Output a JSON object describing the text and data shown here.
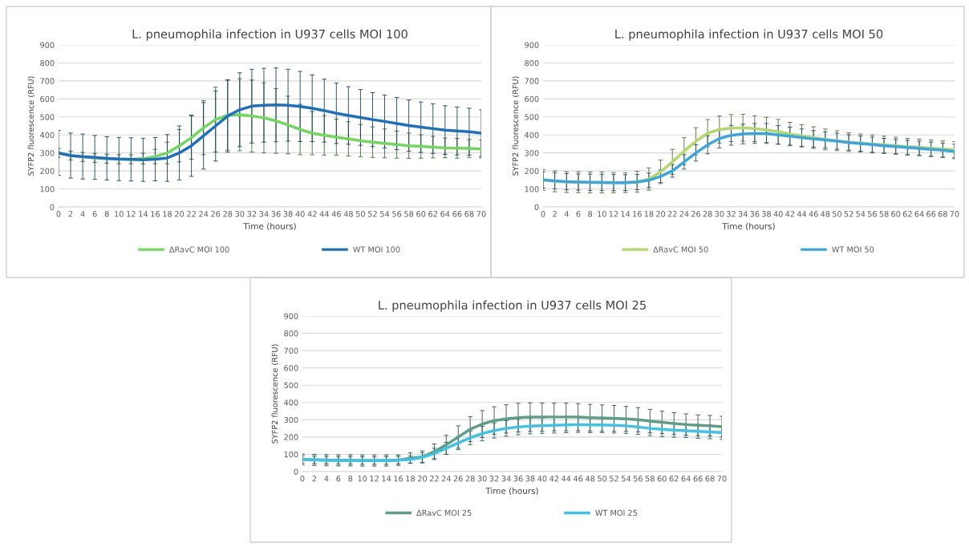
{
  "chart_data": [
    {
      "type": "line",
      "title": "L. pneumophila infection in U937 cells MOI 100",
      "xlabel": "Time (hours)",
      "ylabel": "SYFP2 fluorescence (RFU)",
      "x": [
        0,
        2,
        4,
        6,
        8,
        10,
        12,
        14,
        16,
        18,
        20,
        22,
        24,
        26,
        28,
        30,
        32,
        34,
        36,
        38,
        40,
        42,
        44,
        46,
        48,
        50,
        52,
        54,
        56,
        58,
        60,
        62,
        64,
        66,
        68,
        70
      ],
      "series": [
        {
          "name": "ΔRavC MOI 100",
          "color": "#70d85a",
          "values": [
            300,
            285,
            278,
            272,
            268,
            265,
            265,
            268,
            280,
            300,
            340,
            385,
            440,
            485,
            510,
            512,
            505,
            495,
            478,
            455,
            430,
            410,
            398,
            388,
            378,
            368,
            360,
            353,
            346,
            340,
            336,
            332,
            328,
            326,
            325,
            322
          ],
          "errors": [
            25,
            25,
            25,
            25,
            25,
            25,
            25,
            30,
            40,
            60,
            90,
            120,
            150,
            180,
            195,
            200,
            200,
            195,
            180,
            160,
            140,
            120,
            110,
            100,
            95,
            90,
            85,
            80,
            75,
            70,
            65,
            60,
            55,
            55,
            50,
            50
          ]
        },
        {
          "name": "WT MOI 100",
          "color": "#1c6fc1",
          "values": [
            300,
            285,
            280,
            275,
            270,
            266,
            264,
            262,
            265,
            272,
            300,
            340,
            395,
            450,
            505,
            540,
            560,
            565,
            567,
            565,
            558,
            548,
            535,
            520,
            508,
            497,
            485,
            475,
            463,
            452,
            443,
            435,
            427,
            422,
            418,
            410
          ],
          "errors": [
            125,
            125,
            125,
            122,
            120,
            120,
            120,
            120,
            120,
            130,
            150,
            170,
            185,
            195,
            200,
            205,
            205,
            205,
            205,
            200,
            195,
            185,
            175,
            168,
            160,
            155,
            150,
            147,
            145,
            142,
            140,
            138,
            135,
            133,
            130,
            130
          ]
        }
      ],
      "xlim": [
        0,
        70
      ],
      "xticks": [
        0,
        2,
        4,
        6,
        8,
        10,
        12,
        14,
        16,
        18,
        20,
        22,
        24,
        26,
        28,
        30,
        32,
        34,
        36,
        38,
        40,
        42,
        44,
        46,
        48,
        50,
        52,
        54,
        56,
        58,
        60,
        62,
        64,
        66,
        68,
        70
      ],
      "ylim": [
        0,
        900
      ],
      "yticks": [
        0,
        100,
        200,
        300,
        400,
        500,
        600,
        700,
        800,
        900
      ],
      "grid": "y",
      "legend": "bottom"
    },
    {
      "type": "line",
      "title": "L. pneumophila infection in U937 cells MOI 50",
      "xlabel": "Time (hours)",
      "ylabel": "SYFP2 fluorescence (RFU)",
      "x": [
        0,
        2,
        4,
        6,
        8,
        10,
        12,
        14,
        16,
        18,
        20,
        22,
        24,
        26,
        28,
        30,
        32,
        34,
        36,
        38,
        40,
        42,
        44,
        46,
        48,
        50,
        52,
        54,
        56,
        58,
        60,
        62,
        64,
        66,
        68,
        70
      ],
      "series": [
        {
          "name": "ΔRavC MOI 50",
          "color": "#b2d86a",
          "values": [
            150,
            142,
            138,
            137,
            136,
            136,
            135,
            135,
            140,
            155,
            195,
            250,
            310,
            365,
            410,
            430,
            438,
            440,
            435,
            428,
            418,
            405,
            395,
            385,
            375,
            368,
            360,
            355,
            350,
            345,
            340,
            335,
            332,
            327,
            322,
            318
          ],
          "errors": [
            58,
            58,
            58,
            58,
            58,
            58,
            56,
            55,
            58,
            62,
            65,
            70,
            75,
            75,
            75,
            75,
            75,
            75,
            72,
            70,
            68,
            65,
            62,
            60,
            58,
            55,
            52,
            50,
            50,
            48,
            47,
            46,
            45,
            45,
            45,
            45
          ]
        },
        {
          "name": "WT MOI 50",
          "color": "#3aa6e0",
          "values": [
            150,
            145,
            140,
            138,
            137,
            136,
            135,
            135,
            138,
            148,
            170,
            200,
            250,
            300,
            345,
            380,
            398,
            405,
            408,
            408,
            400,
            393,
            385,
            378,
            372,
            365,
            358,
            352,
            346,
            340,
            335,
            330,
            325,
            320,
            315,
            308
          ],
          "errors": [
            45,
            45,
            45,
            45,
            45,
            45,
            45,
            44,
            42,
            40,
            35,
            35,
            40,
            45,
            50,
            52,
            55,
            55,
            55,
            55,
            52,
            50,
            48,
            46,
            45,
            44,
            43,
            42,
            42,
            41,
            40,
            40,
            40,
            40,
            40,
            40
          ]
        }
      ],
      "xlim": [
        0,
        70
      ],
      "xticks": [
        0,
        2,
        4,
        6,
        8,
        10,
        12,
        14,
        16,
        18,
        20,
        22,
        24,
        26,
        28,
        30,
        32,
        34,
        36,
        38,
        40,
        42,
        44,
        46,
        48,
        50,
        52,
        54,
        56,
        58,
        60,
        62,
        64,
        66,
        68,
        70
      ],
      "ylim": [
        0,
        900
      ],
      "yticks": [
        0,
        100,
        200,
        300,
        400,
        500,
        600,
        700,
        800,
        900
      ],
      "grid": "y",
      "legend": "bottom"
    },
    {
      "type": "line",
      "title": "L. pneumophila infection in U937 cells MOI 25",
      "xlabel": "Time (hours)",
      "ylabel": "SYFP2 fluorescence (RFU)",
      "x": [
        0,
        2,
        4,
        6,
        8,
        10,
        12,
        14,
        16,
        18,
        20,
        22,
        24,
        26,
        28,
        30,
        32,
        34,
        36,
        38,
        40,
        42,
        44,
        46,
        48,
        50,
        52,
        54,
        56,
        58,
        60,
        62,
        64,
        66,
        68,
        70
      ],
      "series": [
        {
          "name": "ΔRavC MOI 25",
          "color": "#5f9e86",
          "values": [
            70,
            68,
            66,
            65,
            65,
            64,
            64,
            64,
            66,
            78,
            85,
            115,
            155,
            200,
            245,
            275,
            295,
            305,
            312,
            315,
            315,
            316,
            316,
            315,
            312,
            310,
            308,
            305,
            300,
            292,
            285,
            278,
            272,
            268,
            265,
            260
          ],
          "errors": [
            32,
            32,
            32,
            32,
            32,
            32,
            32,
            32,
            30,
            30,
            35,
            45,
            55,
            65,
            72,
            78,
            80,
            82,
            83,
            83,
            82,
            80,
            80,
            78,
            77,
            76,
            75,
            72,
            70,
            68,
            65,
            63,
            62,
            60,
            60,
            60
          ]
        },
        {
          "name": "WT MOI 25",
          "color": "#3cc3e6",
          "values": [
            70,
            68,
            66,
            65,
            65,
            64,
            64,
            64,
            66,
            70,
            82,
            105,
            135,
            165,
            195,
            220,
            238,
            250,
            258,
            263,
            266,
            268,
            270,
            272,
            270,
            270,
            268,
            265,
            258,
            250,
            245,
            240,
            237,
            233,
            230,
            226
          ],
          "errors": [
            22,
            22,
            22,
            22,
            22,
            22,
            22,
            22,
            22,
            20,
            28,
            30,
            35,
            38,
            40,
            42,
            44,
            45,
            45,
            45,
            45,
            45,
            45,
            45,
            45,
            45,
            45,
            44,
            43,
            42,
            42,
            41,
            40,
            40,
            40,
            40
          ]
        }
      ],
      "xlim": [
        0,
        70
      ],
      "xticks": [
        0,
        2,
        4,
        6,
        8,
        10,
        12,
        14,
        16,
        18,
        20,
        22,
        24,
        26,
        28,
        30,
        32,
        34,
        36,
        38,
        40,
        42,
        44,
        46,
        48,
        50,
        52,
        54,
        56,
        58,
        60,
        62,
        64,
        66,
        68,
        70
      ],
      "ylim": [
        0,
        900
      ],
      "yticks": [
        0,
        100,
        200,
        300,
        400,
        500,
        600,
        700,
        800,
        900
      ],
      "grid": "y",
      "legend": "bottom"
    }
  ]
}
